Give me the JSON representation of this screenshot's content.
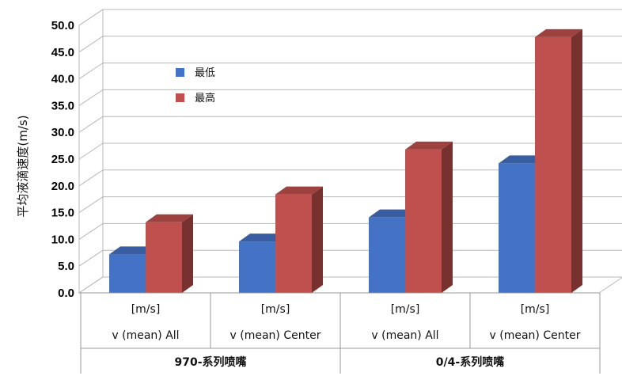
{
  "chart_data": {
    "type": "bar",
    "style": "3d-clustered-column",
    "ylabel": "平均液滴速度(m/s)",
    "ylim": [
      0,
      50
    ],
    "ytick_step": 5,
    "ytick_labels": [
      "0.0",
      "5.0",
      "10.0",
      "15.0",
      "20.0",
      "25.0",
      "30.0",
      "35.0",
      "40.0",
      "45.0",
      "50.0"
    ],
    "grid": true,
    "legend_position": "upper-left-inside",
    "categories": [
      {
        "unit": "[m/s]",
        "label": "v (mean) All"
      },
      {
        "unit": "[m/s]",
        "label": "v (mean) Center"
      },
      {
        "unit": "[m/s]",
        "label": "v (mean) All"
      },
      {
        "unit": "[m/s]",
        "label": "v (mean) Center"
      }
    ],
    "groups": [
      {
        "label": "970-系列喷嘴",
        "span": [
          0,
          1
        ]
      },
      {
        "label": "0/4-系列喷嘴",
        "span": [
          2,
          3
        ]
      }
    ],
    "series": [
      {
        "name": "最低",
        "color": "#4472C4",
        "values": [
          7.2,
          9.6,
          14.1,
          24.2
        ]
      },
      {
        "name": "最高",
        "color": "#C0504D",
        "values": [
          13.2,
          18.4,
          26.8,
          47.8
        ]
      }
    ]
  }
}
